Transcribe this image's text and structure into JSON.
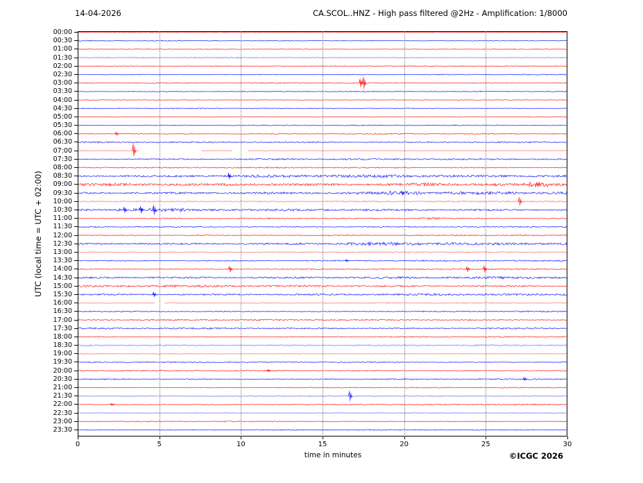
{
  "header": {
    "date": "14-04-2026",
    "title": "CA.SCOL..HNZ - High pass filtered @2Hz - Amplification: 1/8000"
  },
  "footer": {
    "copyright": "©ICGC 2026"
  },
  "chart_data": {
    "type": "line",
    "subtype": "helicorder-seismogram",
    "title": "CA.SCOL..HNZ - High pass filtered @2Hz - Amplification: 1/8000",
    "date_label": "14-04-2026",
    "xlabel": "time in minutes",
    "ylabel": "UTC (local time = UTC + 02:00)",
    "xlim": [
      0,
      30
    ],
    "xticks": [
      0,
      5,
      10,
      15,
      20,
      25,
      30
    ],
    "grid_x_minutes": [
      5,
      10,
      15,
      20,
      25
    ],
    "grid": "vertical-dotted",
    "legend": "none",
    "colors": {
      "red": "#ff0000",
      "blue": "#0000ff",
      "grid": "#777777",
      "frame": "#000000",
      "text": "#000000"
    },
    "rows_format": "l=UTC start label, c=trace color (r=red,b=blue), p=1 pale/faint trace, n=background noise amplitude px, s=spike events [minute,amplitude_px], b2=noise bursts [start_min,end_min,multiplier], g=trace gaps [start_min,end_min]",
    "rows": [
      {
        "l": "00:00",
        "c": "r",
        "n": 0.5
      },
      {
        "l": "00:30",
        "c": "b",
        "n": 0.5
      },
      {
        "l": "01:00",
        "c": "r",
        "n": 0.45
      },
      {
        "l": "01:30",
        "c": "b",
        "p": 1,
        "n": 0.5
      },
      {
        "l": "02:00",
        "c": "r",
        "n": 0.5
      },
      {
        "l": "02:30",
        "c": "b",
        "n": 0.5
      },
      {
        "l": "03:00",
        "c": "r",
        "n": 0.5,
        "s": [
          [
            17.35,
            5
          ],
          [
            17.55,
            7
          ]
        ]
      },
      {
        "l": "03:30",
        "c": "b",
        "n": 0.5
      },
      {
        "l": "04:00",
        "c": "r",
        "n": 0.4
      },
      {
        "l": "04:30",
        "c": "b",
        "n": 0.45
      },
      {
        "l": "05:00",
        "c": "r",
        "n": 0.4
      },
      {
        "l": "05:30",
        "c": "b",
        "n": 0.5
      },
      {
        "l": "06:00",
        "c": "r",
        "n": 0.55,
        "s": [
          [
            2.4,
            2
          ]
        ]
      },
      {
        "l": "06:30",
        "c": "b",
        "n": 0.8,
        "b2": [
          [
            21,
            24,
            1.3
          ]
        ]
      },
      {
        "l": "07:00",
        "c": "r",
        "p": 1,
        "n": 0.4,
        "s": [
          [
            3.45,
            9
          ]
        ],
        "g": [
          [
            3.75,
            7.6
          ],
          [
            9.5,
            10.4
          ]
        ]
      },
      {
        "l": "07:30",
        "c": "b",
        "n": 0.8
      },
      {
        "l": "08:00",
        "c": "r",
        "n": 0.6
      },
      {
        "l": "08:30",
        "c": "b",
        "n": 1.3,
        "s": [
          [
            9.3,
            3.5
          ]
        ],
        "b2": [
          [
            10.5,
            21,
            1.25
          ]
        ]
      },
      {
        "l": "09:00",
        "c": "r",
        "n": 1.7,
        "s": [
          [
            28.2,
            3
          ]
        ],
        "b2": [
          [
            9,
            12,
            1.35
          ],
          [
            20.3,
            22.3,
            1.5
          ],
          [
            27.6,
            28.8,
            1.7
          ]
        ]
      },
      {
        "l": "09:30",
        "c": "b",
        "n": 1.5,
        "s": [
          [
            19.9,
            2.5
          ]
        ],
        "b2": [
          [
            18.8,
            21.2,
            1.5
          ]
        ]
      },
      {
        "l": "10:00",
        "c": "r",
        "p": 1,
        "n": 0.8,
        "s": [
          [
            27.1,
            5
          ]
        ]
      },
      {
        "l": "10:30",
        "c": "b",
        "n": 1.1,
        "s": [
          [
            2.9,
            3.5
          ],
          [
            3.9,
            4
          ],
          [
            4.7,
            5.5
          ]
        ],
        "b2": [
          [
            2.4,
            4.9,
            2.2
          ],
          [
            5,
            6.6,
            1.6
          ]
        ]
      },
      {
        "l": "11:00",
        "c": "r",
        "n": 0.6,
        "b2": [
          [
            20.8,
            22.5,
            2.2
          ]
        ]
      },
      {
        "l": "11:30",
        "c": "b",
        "n": 0.7
      },
      {
        "l": "12:00",
        "c": "r",
        "n": 0.6,
        "b2": [
          [
            7.3,
            7.9,
            2.4
          ]
        ]
      },
      {
        "l": "12:30",
        "c": "b",
        "n": 1.3,
        "b2": [
          [
            16.4,
            19.6,
            1.5
          ],
          [
            20,
            23,
            1.3
          ]
        ]
      },
      {
        "l": "13:00",
        "c": "r",
        "p": 1,
        "n": 0.6
      },
      {
        "l": "13:30",
        "c": "b",
        "n": 0.7,
        "s": [
          [
            16.5,
            1.5
          ]
        ]
      },
      {
        "l": "14:00",
        "c": "r",
        "n": 0.7,
        "s": [
          [
            9.35,
            3.5
          ],
          [
            23.9,
            3
          ],
          [
            24.95,
            4
          ]
        ]
      },
      {
        "l": "14:30",
        "c": "b",
        "n": 1.3
      },
      {
        "l": "15:00",
        "c": "r",
        "n": 1.1
      },
      {
        "l": "15:30",
        "c": "b",
        "n": 1.1,
        "s": [
          [
            4.7,
            3
          ]
        ]
      },
      {
        "l": "16:00",
        "c": "r",
        "p": 1,
        "n": 0.5,
        "g": [
          [
            4.75,
            5.3
          ]
        ]
      },
      {
        "l": "16:30",
        "c": "b",
        "n": 0.7
      },
      {
        "l": "17:00",
        "c": "r",
        "n": 0.7
      },
      {
        "l": "17:30",
        "c": "b",
        "n": 0.8,
        "b2": [
          [
            25,
            29.5,
            1.4
          ]
        ]
      },
      {
        "l": "18:00",
        "c": "r",
        "n": 0.6
      },
      {
        "l": "18:30",
        "c": "b",
        "p": 1,
        "n": 0.7
      },
      {
        "l": "19:00",
        "c": "r",
        "p": 1,
        "n": 0.5
      },
      {
        "l": "19:30",
        "c": "b",
        "n": 0.6
      },
      {
        "l": "20:00",
        "c": "r",
        "n": 0.6,
        "s": [
          [
            11.7,
            1.5
          ]
        ]
      },
      {
        "l": "20:30",
        "c": "b",
        "n": 0.7,
        "s": [
          [
            27.4,
            2
          ]
        ],
        "b2": [
          [
            1.6,
            3.6,
            1.4
          ]
        ]
      },
      {
        "l": "21:00",
        "c": "r",
        "n": 0.5
      },
      {
        "l": "21:30",
        "c": "b",
        "p": 1,
        "n": 0.5,
        "s": [
          [
            16.7,
            6
          ]
        ]
      },
      {
        "l": "22:00",
        "c": "r",
        "n": 0.6,
        "s": [
          [
            2.1,
            1.5
          ]
        ]
      },
      {
        "l": "22:30",
        "c": "b",
        "p": 1,
        "n": 0.4
      },
      {
        "l": "23:00",
        "c": "r",
        "n": 0.5
      },
      {
        "l": "23:30",
        "c": "b",
        "n": 0.5
      }
    ]
  }
}
